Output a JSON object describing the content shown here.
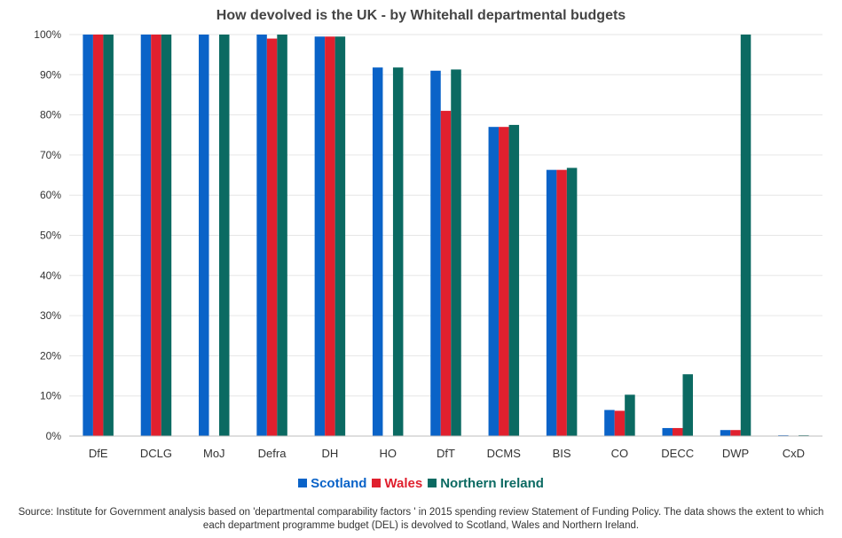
{
  "chart_data": {
    "type": "bar",
    "title": "How devolved is the UK - by Whitehall departmental budgets",
    "categories": [
      "DfE",
      "DCLG",
      "MoJ",
      "Defra",
      "DH",
      "HO",
      "DfT",
      "DCMS",
      "BIS",
      "CO",
      "DECC",
      "DWP",
      "CxD"
    ],
    "series": [
      {
        "name": "Scotland",
        "color": "#0a63c8",
        "values": [
          100,
          100,
          100,
          100,
          99.5,
          91.8,
          91.0,
          77.0,
          66.3,
          6.5,
          2.0,
          1.5,
          0.2
        ]
      },
      {
        "name": "Wales",
        "color": "#e0202e",
        "values": [
          100,
          100,
          0,
          99.0,
          99.5,
          0,
          81.0,
          77.0,
          66.3,
          6.3,
          2.0,
          1.5,
          0
        ]
      },
      {
        "name": "Northern Ireland",
        "color": "#0b6a62",
        "values": [
          100,
          100,
          100,
          100,
          99.5,
          91.8,
          91.3,
          77.5,
          66.8,
          10.3,
          15.4,
          100,
          0.2
        ]
      }
    ],
    "y_ticks": [
      "0%",
      "10%",
      "20%",
      "30%",
      "40%",
      "50%",
      "60%",
      "70%",
      "80%",
      "90%",
      "100%"
    ],
    "ylim": [
      0,
      100
    ],
    "grid": true,
    "legend_position": "bottom",
    "source": "Source: Institute for Government analysis based on 'departmental comparability factors ' in 2015 spending review  Statement of Funding Policy. The data shows the extent to which each department programme budget (DEL) is devolved to Scotland, Wales and Northern Ireland."
  }
}
